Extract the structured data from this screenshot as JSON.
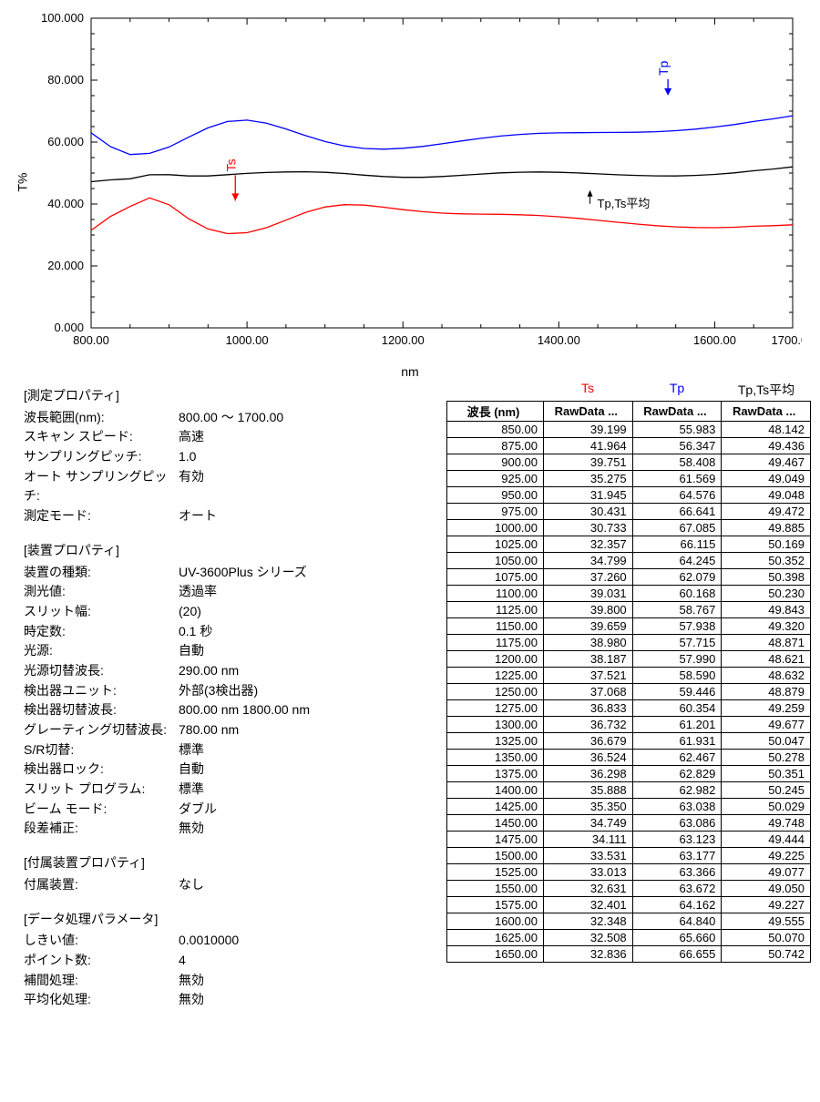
{
  "chart": {
    "type": "line",
    "xlabel": "nm",
    "ylabel": "T%",
    "xlim": [
      800,
      1700
    ],
    "ylim": [
      0,
      100
    ],
    "xtick_labels": [
      "800.00",
      "1000.00",
      "1200.00",
      "1400.00",
      "1600.00",
      "1700.00"
    ],
    "xticks": [
      800,
      1000,
      1200,
      1400,
      1600,
      1700
    ],
    "ytick_labels": [
      "0.000",
      "20.000",
      "40.000",
      "60.000",
      "80.000",
      "100.000"
    ],
    "yticks": [
      0,
      20,
      40,
      60,
      80,
      100
    ],
    "grid_color": "#000000",
    "bg": "#ffffff",
    "line_width": 1.3,
    "annotations": {
      "tp_label": "Tp",
      "ts_label": "Ts",
      "avg_label": "Tp,Ts平均"
    },
    "series": [
      {
        "name": "Tp",
        "color": "#0000ff",
        "x": [
          800,
          825,
          850,
          875,
          900,
          925,
          950,
          975,
          1000,
          1025,
          1050,
          1075,
          1100,
          1125,
          1150,
          1175,
          1200,
          1225,
          1250,
          1275,
          1300,
          1325,
          1350,
          1375,
          1400,
          1425,
          1450,
          1475,
          1500,
          1525,
          1550,
          1575,
          1600,
          1625,
          1650,
          1675,
          1700
        ],
        "y": [
          63.0,
          58.5,
          55.983,
          56.347,
          58.408,
          61.569,
          64.576,
          66.641,
          67.085,
          66.115,
          64.245,
          62.079,
          60.168,
          58.767,
          57.938,
          57.715,
          57.99,
          58.59,
          59.446,
          60.354,
          61.201,
          61.931,
          62.467,
          62.829,
          62.982,
          63.038,
          63.086,
          63.123,
          63.177,
          63.366,
          63.672,
          64.162,
          64.84,
          65.66,
          66.655,
          67.5,
          68.5
        ]
      },
      {
        "name": "avg",
        "color": "#000000",
        "x": [
          800,
          825,
          850,
          875,
          900,
          925,
          950,
          975,
          1000,
          1025,
          1050,
          1075,
          1100,
          1125,
          1150,
          1175,
          1200,
          1225,
          1250,
          1275,
          1300,
          1325,
          1350,
          1375,
          1400,
          1425,
          1450,
          1475,
          1500,
          1525,
          1550,
          1575,
          1600,
          1625,
          1650,
          1675,
          1700
        ],
        "y": [
          47.2,
          47.8,
          48.142,
          49.436,
          49.467,
          49.049,
          49.048,
          49.472,
          49.885,
          50.169,
          50.352,
          50.398,
          50.23,
          49.843,
          49.32,
          48.871,
          48.621,
          48.632,
          48.879,
          49.259,
          49.677,
          50.047,
          50.278,
          50.351,
          50.245,
          50.029,
          49.748,
          49.444,
          49.225,
          49.077,
          49.05,
          49.227,
          49.555,
          50.07,
          50.742,
          51.3,
          52.0
        ]
      },
      {
        "name": "Ts",
        "color": "#ff0000",
        "x": [
          800,
          825,
          850,
          875,
          900,
          925,
          950,
          975,
          1000,
          1025,
          1050,
          1075,
          1100,
          1125,
          1150,
          1175,
          1200,
          1225,
          1250,
          1275,
          1300,
          1325,
          1350,
          1375,
          1400,
          1425,
          1450,
          1475,
          1500,
          1525,
          1550,
          1575,
          1600,
          1625,
          1650,
          1675,
          1700
        ],
        "y": [
          31.5,
          36.0,
          39.199,
          41.964,
          39.751,
          35.275,
          31.945,
          30.431,
          30.733,
          32.357,
          34.799,
          37.26,
          39.031,
          39.8,
          39.659,
          38.98,
          38.187,
          37.521,
          37.068,
          36.833,
          36.732,
          36.679,
          36.524,
          36.298,
          35.888,
          35.35,
          34.749,
          34.111,
          33.531,
          33.013,
          32.631,
          32.401,
          32.348,
          32.508,
          32.836,
          33.0,
          33.3
        ]
      }
    ]
  },
  "props": {
    "s1_title": "[測定プロパティ]",
    "s2_title": "[装置プロパティ]",
    "s3_title": "[付属装置プロパティ]",
    "s4_title": "[データ処理パラメータ]",
    "measure": [
      {
        "k": "波長範囲(nm):",
        "v": "800.00 ～ 1700.00"
      },
      {
        "k": "スキャン スピード:",
        "v": "高速"
      },
      {
        "k": "サンプリングピッチ:",
        "v": "1.0"
      },
      {
        "k": "オート サンプリングピッチ:",
        "v": "有効"
      },
      {
        "k": "測定モード:",
        "v": "オート"
      }
    ],
    "device": [
      {
        "k": "装置の種類:",
        "v": "UV-3600Plus シリーズ"
      },
      {
        "k": "測光値:",
        "v": "透過率"
      },
      {
        "k": "スリット幅:",
        "v": "(20)"
      },
      {
        "k": "時定数:",
        "v": "0.1 秒"
      },
      {
        "k": "光源:",
        "v": "自動"
      },
      {
        "k": "光源切替波長:",
        "v": "290.00 nm"
      },
      {
        "k": "検出器ユニット:",
        "v": "外部(3検出器)"
      },
      {
        "k": "検出器切替波長:",
        "v": "800.00 nm  1800.00 nm"
      },
      {
        "k": "グレーティング切替波長:",
        "v": "780.00 nm"
      },
      {
        "k": "S/R切替:",
        "v": "標準"
      },
      {
        "k": "検出器ロック:",
        "v": "自動"
      },
      {
        "k": "スリット プログラム:",
        "v": "標準"
      },
      {
        "k": "ビーム モード:",
        "v": "ダブル"
      },
      {
        "k": "段差補正:",
        "v": "無効"
      }
    ],
    "acc": [
      {
        "k": "付属装置:",
        "v": "なし"
      }
    ],
    "dp": [
      {
        "k": "しきい値:",
        "v": "0.0010000"
      },
      {
        "k": "ポイント数:",
        "v": "4"
      },
      {
        "k": "補間処理:",
        "v": "無効"
      },
      {
        "k": "平均化処理:",
        "v": "無効"
      }
    ]
  },
  "table": {
    "series_labels": {
      "ts": "Ts",
      "tp": "Tp",
      "avg": "Tp,Ts平均"
    },
    "series_colors": {
      "ts": "#ff0000",
      "tp": "#0000ff",
      "avg": "#000000"
    },
    "columns": [
      "波長 (nm)",
      "RawData ...",
      "RawData ...",
      "RawData ..."
    ],
    "rows": [
      [
        "850.00",
        "39.199",
        "55.983",
        "48.142"
      ],
      [
        "875.00",
        "41.964",
        "56.347",
        "49.436"
      ],
      [
        "900.00",
        "39.751",
        "58.408",
        "49.467"
      ],
      [
        "925.00",
        "35.275",
        "61.569",
        "49.049"
      ],
      [
        "950.00",
        "31.945",
        "64.576",
        "49.048"
      ],
      [
        "975.00",
        "30.431",
        "66.641",
        "49.472"
      ],
      [
        "1000.00",
        "30.733",
        "67.085",
        "49.885"
      ],
      [
        "1025.00",
        "32.357",
        "66.115",
        "50.169"
      ],
      [
        "1050.00",
        "34.799",
        "64.245",
        "50.352"
      ],
      [
        "1075.00",
        "37.260",
        "62.079",
        "50.398"
      ],
      [
        "1100.00",
        "39.031",
        "60.168",
        "50.230"
      ],
      [
        "1125.00",
        "39.800",
        "58.767",
        "49.843"
      ],
      [
        "1150.00",
        "39.659",
        "57.938",
        "49.320"
      ],
      [
        "1175.00",
        "38.980",
        "57.715",
        "48.871"
      ],
      [
        "1200.00",
        "38.187",
        "57.990",
        "48.621"
      ],
      [
        "1225.00",
        "37.521",
        "58.590",
        "48.632"
      ],
      [
        "1250.00",
        "37.068",
        "59.446",
        "48.879"
      ],
      [
        "1275.00",
        "36.833",
        "60.354",
        "49.259"
      ],
      [
        "1300.00",
        "36.732",
        "61.201",
        "49.677"
      ],
      [
        "1325.00",
        "36.679",
        "61.931",
        "50.047"
      ],
      [
        "1350.00",
        "36.524",
        "62.467",
        "50.278"
      ],
      [
        "1375.00",
        "36.298",
        "62.829",
        "50.351"
      ],
      [
        "1400.00",
        "35.888",
        "62.982",
        "50.245"
      ],
      [
        "1425.00",
        "35.350",
        "63.038",
        "50.029"
      ],
      [
        "1450.00",
        "34.749",
        "63.086",
        "49.748"
      ],
      [
        "1475.00",
        "34.111",
        "63.123",
        "49.444"
      ],
      [
        "1500.00",
        "33.531",
        "63.177",
        "49.225"
      ],
      [
        "1525.00",
        "33.013",
        "63.366",
        "49.077"
      ],
      [
        "1550.00",
        "32.631",
        "63.672",
        "49.050"
      ],
      [
        "1575.00",
        "32.401",
        "64.162",
        "49.227"
      ],
      [
        "1600.00",
        "32.348",
        "64.840",
        "49.555"
      ],
      [
        "1625.00",
        "32.508",
        "65.660",
        "50.070"
      ],
      [
        "1650.00",
        "32.836",
        "66.655",
        "50.742"
      ]
    ]
  }
}
